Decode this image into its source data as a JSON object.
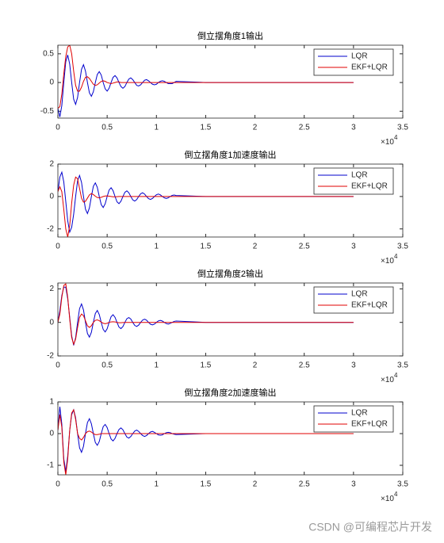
{
  "chart_data": [
    {
      "type": "line",
      "title": "倒立摆角度1输出",
      "x": [
        0,
        200,
        400,
        600,
        800,
        1000,
        1200,
        1400,
        1600,
        1800,
        2000,
        2200,
        2400,
        2600,
        2800,
        3000,
        3200,
        3400,
        3600,
        3800,
        4000,
        4200,
        4400,
        4600,
        4800,
        5000,
        5200,
        5400,
        5600,
        5800,
        6000,
        6200,
        6400,
        6600,
        6800,
        7000,
        7200,
        7400,
        7600,
        7800,
        8000,
        8200,
        8400,
        8600,
        8800,
        9000,
        9200,
        9400,
        9600,
        9800,
        10000,
        10200,
        10400,
        10600,
        10800,
        11000,
        11200,
        11400,
        11600,
        11800,
        12000,
        15000,
        20000,
        25000,
        30000
      ],
      "series": [
        {
          "name": "LQR",
          "color": "#0000cd",
          "values": [
            -0.45,
            -0.6,
            -0.4,
            0,
            0.36,
            0.48,
            0.32,
            0,
            -0.29,
            -0.38,
            -0.26,
            0,
            0.23,
            0.31,
            0.2,
            0,
            -0.18,
            -0.24,
            -0.16,
            0,
            0.14,
            0.19,
            0.13,
            0,
            -0.11,
            -0.15,
            -0.1,
            0,
            0.09,
            0.12,
            0.08,
            0,
            -0.07,
            -0.1,
            -0.07,
            0,
            0.06,
            0.08,
            0.05,
            0,
            -0.05,
            -0.06,
            -0.04,
            0,
            0.04,
            0.05,
            0.03,
            0,
            -0.03,
            -0.04,
            -0.03,
            0,
            0.02,
            0.03,
            0.02,
            0,
            -0.02,
            -0.02,
            -0.02,
            0,
            0.02,
            0,
            0,
            0,
            0
          ]
        },
        {
          "name": "EKF+LQR",
          "color": "#e00000",
          "values": [
            -0.45,
            -0.42,
            -0.2,
            0.15,
            0.45,
            0.62,
            0.65,
            0.5,
            0.2,
            -0.05,
            -0.15,
            -0.15,
            -0.08,
            0.02,
            0.09,
            0.1,
            0.07,
            0.02,
            -0.03,
            -0.05,
            -0.04,
            -0.01,
            0.02,
            0.03,
            0.02,
            0,
            -0.01,
            -0.02,
            -0.01,
            0,
            0.01,
            0.01,
            0,
            0,
            0,
            0,
            0,
            0,
            0,
            0,
            0,
            0,
            0,
            0,
            0,
            0,
            0,
            0,
            0,
            0,
            0,
            0,
            0,
            0,
            0,
            0,
            0,
            0,
            0,
            0,
            0,
            0,
            0,
            0,
            0
          ]
        }
      ],
      "xlim": [
        0,
        35000
      ],
      "xticks": [
        0,
        {
          "value": 5000,
          "label": "0.5"
        },
        {
          "value": 10000,
          "label": "1"
        },
        {
          "value": 15000,
          "label": "1.5"
        },
        {
          "value": 20000,
          "label": "2"
        },
        {
          "value": 25000,
          "label": "2.5"
        },
        {
          "value": 30000,
          "label": "3"
        },
        {
          "value": 35000,
          "label": "3.5"
        }
      ],
      "x_multiplier": {
        "base": "×10",
        "exponent": "4"
      },
      "ylim": [
        -0.62,
        0.65
      ],
      "yticks": [
        -0.5,
        0,
        0.5
      ],
      "legend": "northeast"
    },
    {
      "type": "line",
      "title": "倒立摆角度1加速度输出",
      "x": [
        0,
        200,
        400,
        600,
        800,
        1000,
        1200,
        1400,
        1600,
        1800,
        2000,
        2200,
        2400,
        2600,
        2800,
        3000,
        3200,
        3400,
        3600,
        3800,
        4000,
        4200,
        4400,
        4600,
        4800,
        5000,
        5200,
        5400,
        5600,
        5800,
        6000,
        6200,
        6400,
        6600,
        6800,
        7000,
        7200,
        7400,
        7600,
        7800,
        8000,
        8200,
        8400,
        8600,
        8800,
        9000,
        9200,
        9400,
        9600,
        9800,
        10000,
        10200,
        10400,
        10600,
        10800,
        11000,
        11200,
        11400,
        11600,
        11800,
        12000,
        15000,
        20000,
        25000,
        30000
      ],
      "series": [
        {
          "name": "LQR",
          "color": "#0000cd",
          "values": [
            0.3,
            1.2,
            1.5,
            0.9,
            -0.3,
            -1.5,
            -2.2,
            -1.9,
            -1.1,
            0,
            0.97,
            1.3,
            0.87,
            0,
            -0.78,
            -1.05,
            -0.7,
            0,
            0.63,
            0.84,
            0.57,
            0,
            -0.5,
            -0.68,
            -0.45,
            0,
            0.4,
            0.54,
            0.36,
            0,
            -0.33,
            -0.44,
            -0.29,
            0,
            0.26,
            0.35,
            0.23,
            0,
            -0.21,
            -0.28,
            -0.19,
            0,
            0.17,
            0.23,
            0.15,
            0,
            -0.13,
            -0.18,
            -0.12,
            0,
            0.11,
            0.15,
            0.1,
            0,
            -0.08,
            -0.12,
            -0.08,
            0,
            0.07,
            0.09,
            0.06,
            0,
            0,
            0,
            0
          ]
        },
        {
          "name": "EKF+LQR",
          "color": "#e00000",
          "values": [
            0.3,
            0.6,
            0.3,
            -0.8,
            -2,
            -2.5,
            -1.8,
            -0.4,
            0.7,
            1.2,
            1.1,
            0.5,
            -0.1,
            -0.35,
            -0.3,
            -0.1,
            0.1,
            0.18,
            0.12,
            0.02,
            -0.06,
            -0.08,
            -0.05,
            0,
            0.03,
            0.04,
            0.02,
            0,
            -0.02,
            -0.02,
            -0.01,
            0,
            0,
            0,
            0,
            0,
            0,
            0,
            0,
            0,
            0,
            0,
            0,
            0,
            0,
            0,
            0,
            0,
            0,
            0,
            0,
            0,
            0,
            0,
            0,
            0,
            0,
            0,
            0,
            0,
            0,
            0,
            0,
            0,
            0
          ]
        }
      ],
      "xlim": [
        0,
        35000
      ],
      "xticks": [
        0,
        {
          "value": 5000,
          "label": "0.5"
        },
        {
          "value": 10000,
          "label": "1"
        },
        {
          "value": 15000,
          "label": "1.5"
        },
        {
          "value": 20000,
          "label": "2"
        },
        {
          "value": 25000,
          "label": "2.5"
        },
        {
          "value": 30000,
          "label": "3"
        },
        {
          "value": 35000,
          "label": "3.5"
        }
      ],
      "x_multiplier": {
        "base": "×10",
        "exponent": "4"
      },
      "ylim": [
        -2.5,
        2
      ],
      "yticks": [
        -2,
        0,
        2
      ],
      "legend": "northeast"
    },
    {
      "type": "line",
      "title": "倒立摆角度2输出",
      "x": [
        0,
        200,
        400,
        600,
        800,
        1000,
        1200,
        1400,
        1600,
        1800,
        2000,
        2200,
        2400,
        2600,
        2800,
        3000,
        3200,
        3400,
        3600,
        3800,
        4000,
        4200,
        4400,
        4600,
        4800,
        5000,
        5200,
        5400,
        5600,
        5800,
        6000,
        6200,
        6400,
        6600,
        6800,
        7000,
        7200,
        7400,
        7600,
        7800,
        8000,
        8200,
        8400,
        8600,
        8800,
        9000,
        9200,
        9400,
        9600,
        9800,
        10000,
        10200,
        10400,
        10600,
        10800,
        11000,
        11200,
        11400,
        11600,
        11800,
        12000,
        15000,
        20000,
        25000,
        30000
      ],
      "series": [
        {
          "name": "LQR",
          "color": "#0000cd",
          "values": [
            0,
            0.7,
            1.6,
            2.1,
            2.1,
            1.4,
            0.3,
            -0.8,
            -1.37,
            -0.92,
            0,
            0.82,
            1.1,
            0.74,
            0,
            -0.66,
            -0.88,
            -0.59,
            0,
            0.53,
            0.71,
            0.47,
            0,
            -0.42,
            -0.57,
            -0.38,
            0,
            0.34,
            0.46,
            0.3,
            0,
            -0.28,
            -0.37,
            -0.25,
            0,
            0.22,
            0.29,
            0.2,
            0,
            -0.18,
            -0.24,
            -0.16,
            0,
            0.14,
            0.19,
            0.13,
            0,
            -0.11,
            -0.15,
            -0.1,
            0,
            0.09,
            0.12,
            0.08,
            0,
            -0.07,
            -0.1,
            -0.06,
            0,
            0.06,
            0.08,
            0,
            0,
            0,
            0
          ]
        },
        {
          "name": "EKF+LQR",
          "color": "#e00000",
          "values": [
            0,
            0.5,
            1.5,
            2.2,
            2.3,
            1.5,
            0.2,
            -0.9,
            -1.3,
            -1,
            -0.3,
            0.3,
            0.5,
            0.4,
            0.1,
            -0.2,
            -0.3,
            -0.2,
            0,
            0.12,
            0.15,
            0.1,
            0.02,
            -0.05,
            -0.08,
            -0.05,
            0,
            0.03,
            0.04,
            0.03,
            0,
            -0.02,
            -0.02,
            -0.01,
            0,
            0,
            0,
            0,
            0,
            0,
            0,
            0,
            0,
            0,
            0,
            0,
            0,
            0,
            0,
            0,
            0,
            0,
            0,
            0,
            0,
            0,
            0,
            0,
            0,
            0,
            0,
            0,
            0,
            0,
            0
          ]
        }
      ],
      "xlim": [
        0,
        35000
      ],
      "xticks": [
        0,
        {
          "value": 5000,
          "label": "0.5"
        },
        {
          "value": 10000,
          "label": "1"
        },
        {
          "value": 15000,
          "label": "1.5"
        },
        {
          "value": 20000,
          "label": "2"
        },
        {
          "value": 25000,
          "label": "2.5"
        },
        {
          "value": 30000,
          "label": "3"
        },
        {
          "value": 35000,
          "label": "3.5"
        }
      ],
      "x_multiplier": {
        "base": "×10",
        "exponent": "4"
      },
      "ylim": [
        -2,
        2.35
      ],
      "yticks": [
        -2,
        0,
        2
      ],
      "legend": "northeast"
    },
    {
      "type": "line",
      "title": "倒立摆角度2加速度输出",
      "x": [
        0,
        200,
        400,
        600,
        800,
        1000,
        1200,
        1400,
        1600,
        1800,
        2000,
        2200,
        2400,
        2600,
        2800,
        3000,
        3200,
        3400,
        3600,
        3800,
        4000,
        4200,
        4400,
        4600,
        4800,
        5000,
        5200,
        5400,
        5600,
        5800,
        6000,
        6200,
        6400,
        6600,
        6800,
        7000,
        7200,
        7400,
        7600,
        7800,
        8000,
        8200,
        8400,
        8600,
        8800,
        9000,
        9200,
        9400,
        9600,
        9800,
        10000,
        10200,
        10400,
        10600,
        10800,
        11000,
        11200,
        11400,
        11600,
        11800,
        12000,
        15000,
        20000,
        25000,
        30000
      ],
      "series": [
        {
          "name": "LQR",
          "color": "#0000cd",
          "values": [
            0.1,
            0.85,
            0.3,
            -0.8,
            -1.2,
            -0.7,
            0.1,
            0.6,
            0.75,
            0.5,
            0,
            -0.45,
            -0.59,
            -0.4,
            0,
            0.35,
            0.47,
            0.31,
            0,
            -0.28,
            -0.37,
            -0.25,
            0,
            0.22,
            0.29,
            0.19,
            0,
            -0.17,
            -0.23,
            -0.15,
            0,
            0.13,
            0.18,
            0.12,
            0,
            -0.11,
            -0.14,
            -0.09,
            0,
            0.08,
            0.11,
            0.07,
            0,
            -0.06,
            -0.09,
            -0.06,
            0,
            0.05,
            0.07,
            0.04,
            0,
            -0.04,
            -0.05,
            -0.04,
            0,
            0.03,
            0.04,
            0.03,
            0,
            -0.02,
            -0.03,
            0,
            0,
            0,
            0
          ]
        },
        {
          "name": "EKF+LQR",
          "color": "#e00000",
          "values": [
            0.1,
            0.6,
            0.2,
            -0.9,
            -1.3,
            -0.8,
            0.1,
            0.65,
            0.75,
            0.45,
            0,
            -0.15,
            -0.2,
            -0.12,
            0,
            0.06,
            0.08,
            0.05,
            0,
            -0.03,
            -0.03,
            -0.02,
            0,
            0,
            0,
            0,
            0,
            0,
            0,
            0,
            0,
            0,
            0,
            0,
            0,
            0,
            0,
            0,
            0,
            0,
            0,
            0,
            0,
            0,
            0,
            0,
            0,
            0,
            0,
            0,
            0,
            0,
            0,
            0,
            0,
            0,
            0,
            0,
            0,
            0,
            0,
            0,
            0,
            0,
            0
          ]
        }
      ],
      "xlim": [
        0,
        35000
      ],
      "xticks": [
        0,
        {
          "value": 5000,
          "label": "0.5"
        },
        {
          "value": 10000,
          "label": "1"
        },
        {
          "value": 15000,
          "label": "1.5"
        },
        {
          "value": 20000,
          "label": "2"
        },
        {
          "value": 25000,
          "label": "2.5"
        },
        {
          "value": 30000,
          "label": "3"
        },
        {
          "value": 35000,
          "label": "3.5"
        }
      ],
      "x_multiplier": {
        "base": "×10",
        "exponent": "4"
      },
      "ylim": [
        -1.3,
        1
      ],
      "yticks": [
        -1,
        0,
        1
      ],
      "legend": "northeast"
    }
  ],
  "watermark": "CSDN @可编程芯片开发"
}
